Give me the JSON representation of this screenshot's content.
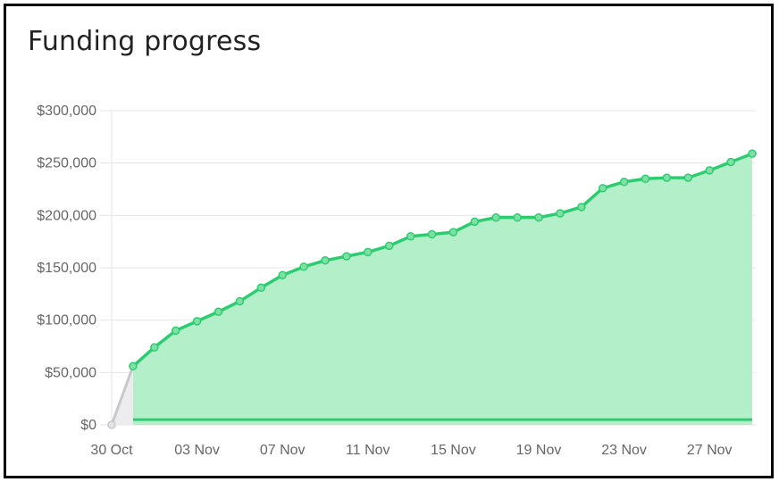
{
  "chart_data": {
    "type": "area",
    "title": "Funding progress",
    "xlabel": "",
    "ylabel": "",
    "x_tick_labels": [
      "30 Oct",
      "03 Nov",
      "07 Nov",
      "11 Nov",
      "15 Nov",
      "19 Nov",
      "23 Nov",
      "27 Nov"
    ],
    "y_tick_labels": [
      "$0",
      "$50,000",
      "$100,000",
      "$150,000",
      "$200,000",
      "$250,000",
      "$300,000"
    ],
    "ylim": [
      0,
      300000
    ],
    "x": [
      "30 Oct",
      "31 Oct",
      "01 Nov",
      "02 Nov",
      "03 Nov",
      "04 Nov",
      "05 Nov",
      "06 Nov",
      "07 Nov",
      "08 Nov",
      "09 Nov",
      "10 Nov",
      "11 Nov",
      "12 Nov",
      "13 Nov",
      "14 Nov",
      "15 Nov",
      "16 Nov",
      "17 Nov",
      "18 Nov",
      "19 Nov",
      "20 Nov",
      "21 Nov",
      "22 Nov",
      "23 Nov",
      "24 Nov",
      "25 Nov",
      "26 Nov",
      "27 Nov",
      "28 Nov",
      "29 Nov"
    ],
    "series": [
      {
        "values": [
          0,
          56000,
          74000,
          90000,
          99000,
          108000,
          118000,
          131000,
          143000,
          151000,
          157000,
          161000,
          165000,
          171000,
          180000,
          182000,
          184000,
          194000,
          198000,
          198000,
          198000,
          202000,
          208000,
          226000,
          232000,
          235000,
          236000,
          236000,
          243000,
          251000,
          259000
        ]
      }
    ],
    "baseline_value": 5000,
    "grid": true,
    "legend": "none",
    "colors": {
      "line": "#2ecc71",
      "fill": "#b3f0c9",
      "first_segment": "#c8c8cc",
      "first_fill": "#ececef",
      "grid": "#e6e6e6",
      "text": "#666666"
    }
  }
}
